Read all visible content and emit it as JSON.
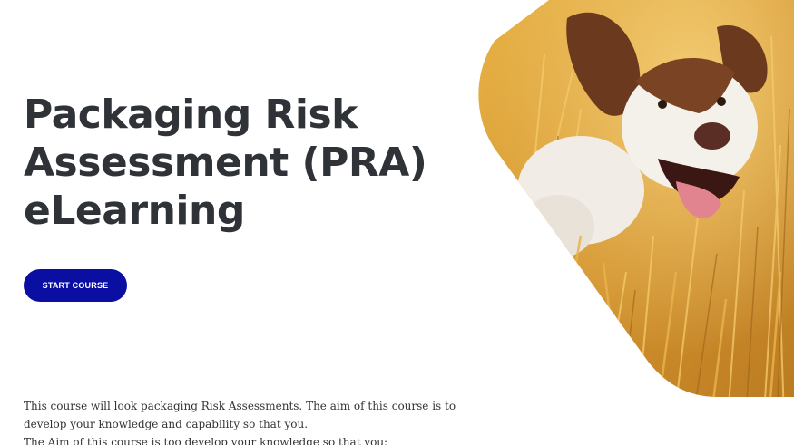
{
  "hero": {
    "title_lines": [
      "Packaging Risk",
      "Assessment (PRA)",
      "eLearning"
    ],
    "start_button_label": "START COURSE",
    "image_icon": "running-spaniel-dog-photo"
  },
  "intro": {
    "lines": [
      "This course will look packaging Risk Assessments. The aim of this course is to",
      "develop your knowledge and capability so that you.",
      "The Aim of this course is too develop your knowledge so that you:"
    ]
  },
  "colors": {
    "button": "#0a0fa1",
    "title": "#2f3338",
    "body_text": "#333333",
    "field": "#d99a2c"
  }
}
